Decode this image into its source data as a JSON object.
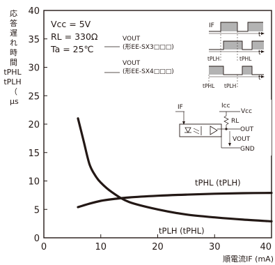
{
  "chart_data": {
    "type": "line",
    "xlabel": "順電流IF (mA)",
    "ylabel_lines": [
      "応",
      "答",
      "遅",
      "れ",
      "時",
      "間",
      "tPHL",
      "tPLH",
      "（",
      "μs"
    ],
    "xlim": [
      0,
      40
    ],
    "ylim": [
      0,
      40
    ],
    "x_ticks": [
      0,
      10,
      20,
      30,
      40
    ],
    "y_ticks": [
      0,
      5,
      10,
      15,
      20,
      25,
      30,
      35,
      40
    ],
    "grid": false,
    "conditions": [
      "Vcc = 5V",
      "RL = 330Ω",
      "Ta = 25℃"
    ],
    "series": [
      {
        "name": "tPHL (tPLH)",
        "x": [
          6,
          8,
          10,
          12,
          15,
          20,
          25,
          30,
          35,
          40
        ],
        "y": [
          5.4,
          6.0,
          6.5,
          6.8,
          7.1,
          7.4,
          7.6,
          7.75,
          7.85,
          7.9
        ]
      },
      {
        "name": "tPLH (tPHL)",
        "x": [
          6,
          7,
          8,
          9,
          10,
          12,
          15,
          20,
          25,
          30,
          35,
          40
        ],
        "y": [
          21.0,
          17.0,
          13.0,
          11.0,
          9.7,
          8.0,
          6.3,
          5.0,
          4.1,
          3.6,
          3.2,
          2.9
        ]
      }
    ],
    "timing_inset": {
      "if_label": "IF",
      "t_label": "t",
      "vout_1_label": "VOUT",
      "vout_1_model": "(形EE-SX3□□□)",
      "vout_2_label": "VOUT",
      "vout_2_model": "(形EE-SX4□□□)",
      "tplh": "tPLH",
      "tphl": "tPHL"
    },
    "circuit_inset": {
      "if_label": "IF",
      "icc_label": "Icc",
      "vcc_label": "Vcc",
      "rl_label": "RL",
      "out_label": "OUT",
      "vout_label": "VOUT",
      "gnd_label": "GND"
    }
  }
}
